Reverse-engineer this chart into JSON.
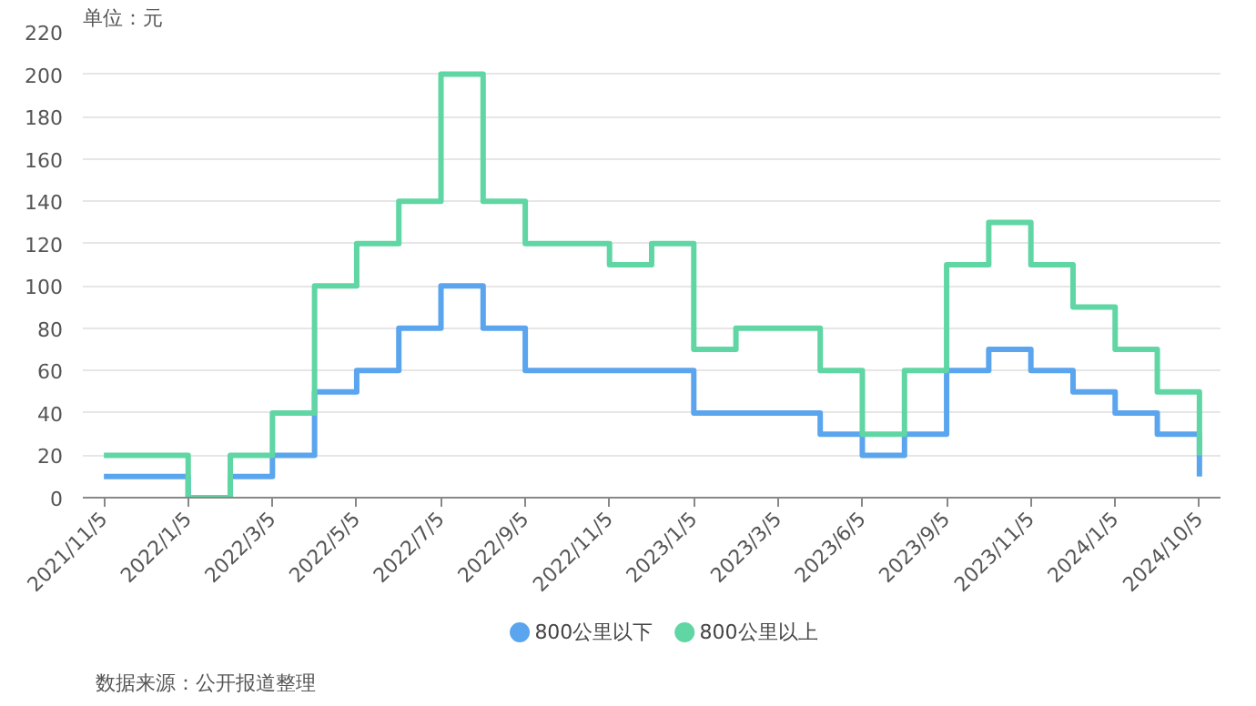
{
  "chart_data": {
    "type": "step",
    "categories": [
      "2021/11/5",
      null,
      "2022/1/5",
      null,
      "2022/3/5",
      null,
      "2022/5/5",
      null,
      "2022/7/5",
      null,
      "2022/9/5",
      null,
      "2022/11/5",
      null,
      "2023/1/5",
      null,
      "2023/3/5",
      null,
      "2023/6/5",
      null,
      "2023/9/5",
      null,
      "2023/11/5",
      null,
      "2024/1/5",
      null,
      "2024/10/5"
    ],
    "series": [
      {
        "name": "800公里以下",
        "color": "#5aa5ee",
        "values": [
          10,
          10,
          0,
          10,
          20,
          50,
          60,
          80,
          100,
          80,
          60,
          60,
          60,
          60,
          40,
          40,
          40,
          30,
          20,
          30,
          60,
          70,
          60,
          50,
          40,
          30,
          10
        ]
      },
      {
        "name": "800公里以上",
        "color": "#5fd6a3",
        "values": [
          20,
          20,
          0,
          20,
          40,
          100,
          120,
          140,
          200,
          140,
          120,
          120,
          110,
          120,
          70,
          80,
          80,
          60,
          30,
          60,
          110,
          130,
          110,
          90,
          70,
          50,
          20
        ]
      }
    ],
    "ylim": [
      0,
      220
    ],
    "yticks": [
      0,
      20,
      40,
      60,
      80,
      100,
      120,
      140,
      160,
      180,
      200,
      220
    ],
    "grid": "y",
    "legend": "bottom",
    "annotations": [
      "单位：元",
      "数据来源：公开报道整理"
    ]
  }
}
